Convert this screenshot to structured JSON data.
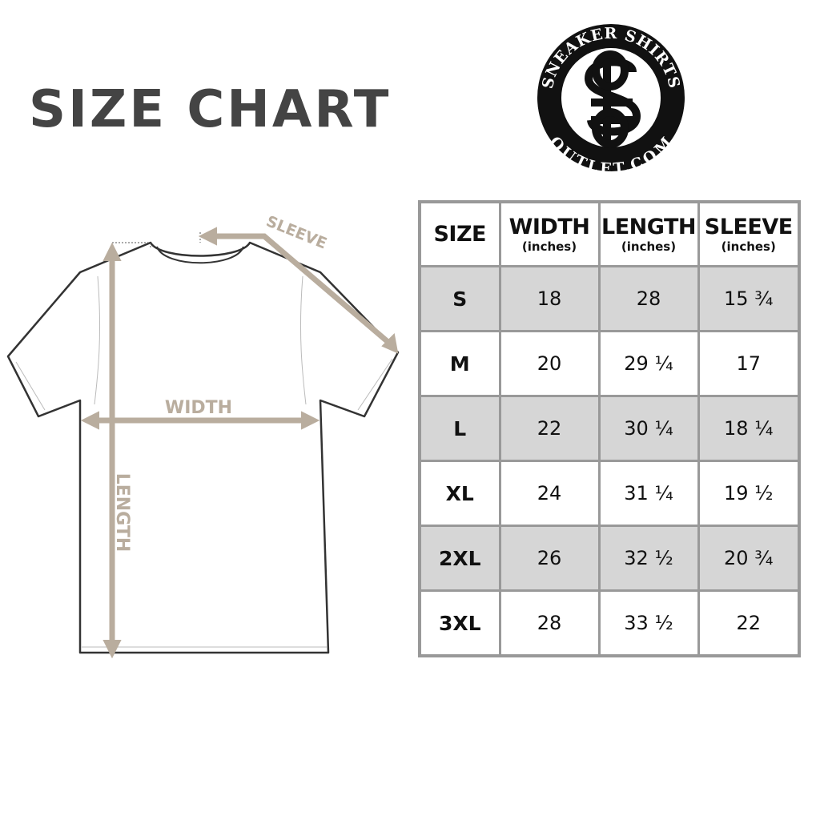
{
  "title": "SIZE CHART",
  "logo": {
    "top_text": "SNEAKER SHIRTS",
    "bottom_text": "OUTLET.COM",
    "monogram": "SS"
  },
  "diagram": {
    "width_label": "WIDTH",
    "length_label": "LENGTH",
    "sleeve_label": "SLEEVE",
    "arrow_color": "#b9ad9e"
  },
  "table": {
    "headers": [
      {
        "label": "SIZE",
        "unit": ""
      },
      {
        "label": "WIDTH",
        "unit": "(inches)"
      },
      {
        "label": "LENGTH",
        "unit": "(inches)"
      },
      {
        "label": "SLEEVE",
        "unit": "(inches)"
      }
    ],
    "rows": [
      [
        "S",
        "18",
        "28",
        "15 ¾"
      ],
      [
        "M",
        "20",
        "29 ¼",
        "17"
      ],
      [
        "L",
        "22",
        "30 ¼",
        "18 ¼"
      ],
      [
        "XL",
        "24",
        "31 ¼",
        "19 ½"
      ],
      [
        "2XL",
        "26",
        "32 ½",
        "20 ¾"
      ],
      [
        "3XL",
        "28",
        "33 ½",
        "22"
      ]
    ]
  }
}
